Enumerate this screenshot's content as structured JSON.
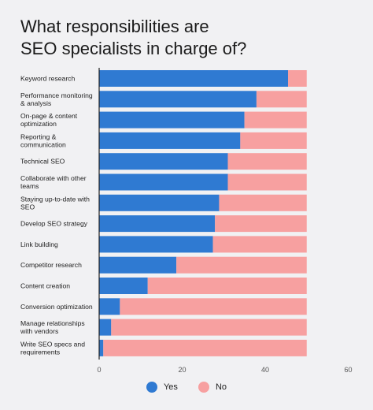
{
  "title_line1": "What responsibilities are",
  "title_line2": "SEO specialists in charge of?",
  "colors": {
    "yes": "#2f7ad2",
    "no": "#f7a0a0",
    "axis": "#222222"
  },
  "chart_data": {
    "type": "bar",
    "orientation": "horizontal",
    "stacked": true,
    "categories": [
      [
        "Keyword research"
      ],
      [
        "Performance monitoring",
        "& analysis"
      ],
      [
        "On-page & content",
        "optimization"
      ],
      [
        "Reporting &",
        "communication"
      ],
      [
        "Technical SEO"
      ],
      [
        "Collaborate with other",
        "teams"
      ],
      [
        "Staying up-to-date with",
        "SEO"
      ],
      [
        "Develop SEO strategy"
      ],
      [
        "Link building"
      ],
      [
        "Competitor research"
      ],
      [
        "Content creation"
      ],
      [
        "Conversion optimization"
      ],
      [
        "Manage relationships",
        "with vendors"
      ],
      [
        "Write SEO specs and",
        "requirements"
      ]
    ],
    "series": [
      {
        "name": "Yes",
        "values": [
          45.5,
          37.9,
          35.0,
          34.0,
          31.0,
          31.0,
          28.9,
          27.9,
          27.4,
          18.6,
          11.7,
          5.0,
          2.9,
          1.0
        ]
      },
      {
        "name": "No",
        "values": [
          4.5,
          12.1,
          15.0,
          16.0,
          19.0,
          19.0,
          21.1,
          22.1,
          22.6,
          31.4,
          38.3,
          45.0,
          47.1,
          49.0
        ]
      }
    ],
    "xlim": [
      0,
      60
    ],
    "xticks": [
      0,
      20,
      40,
      60
    ],
    "grid": false,
    "legend_position": "bottom-center"
  }
}
